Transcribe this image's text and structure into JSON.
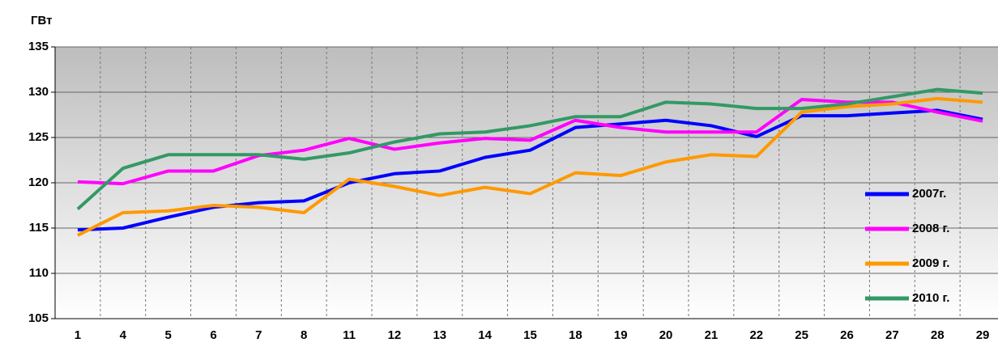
{
  "chart_data": {
    "type": "line",
    "y_label": "ГВт",
    "categories": [
      "1",
      "4",
      "5",
      "6",
      "7",
      "8",
      "11",
      "12",
      "13",
      "14",
      "15",
      "18",
      "19",
      "20",
      "21",
      "22",
      "25",
      "26",
      "27",
      "28",
      "29"
    ],
    "series": [
      {
        "name": "2007г.",
        "color": "#0000ff",
        "values": [
          114.8,
          115,
          116.2,
          117.3,
          117.8,
          118,
          120,
          121,
          121.3,
          122.8,
          123.6,
          126.1,
          126.5,
          126.9,
          126.3,
          125.1,
          127.4,
          127.4,
          127.7,
          128,
          127
        ]
      },
      {
        "name": "2008 г.",
        "color": "#ff00ff",
        "values": [
          120.1,
          119.9,
          121.3,
          121.3,
          123,
          123.6,
          124.9,
          123.7,
          124.4,
          124.9,
          124.7,
          126.9,
          126.1,
          125.6,
          125.6,
          125.6,
          129.2,
          128.9,
          128.9,
          127.8,
          126.8
        ]
      },
      {
        "name": "2009 г.",
        "color": "#ff9900",
        "values": [
          114.2,
          116.7,
          116.9,
          117.5,
          117.3,
          116.7,
          120.4,
          119.6,
          118.6,
          119.5,
          118.8,
          121.1,
          120.8,
          122.3,
          123.1,
          122.9,
          127.8,
          128.4,
          128.7,
          129.3,
          128.9
        ]
      },
      {
        "name": "2010 г.",
        "color": "#339966",
        "values": [
          117.1,
          121.6,
          123.1,
          123.1,
          123.1,
          122.6,
          123.3,
          124.5,
          125.4,
          125.6,
          126.3,
          127.3,
          127.3,
          128.9,
          128.7,
          128.2,
          128.2,
          128.7,
          129.5,
          130.3,
          129.9
        ]
      }
    ],
    "ylim": [
      105,
      135
    ],
    "yticks": [
      105,
      110,
      115,
      120,
      125,
      130,
      135
    ],
    "grid": true,
    "legend": "right"
  }
}
